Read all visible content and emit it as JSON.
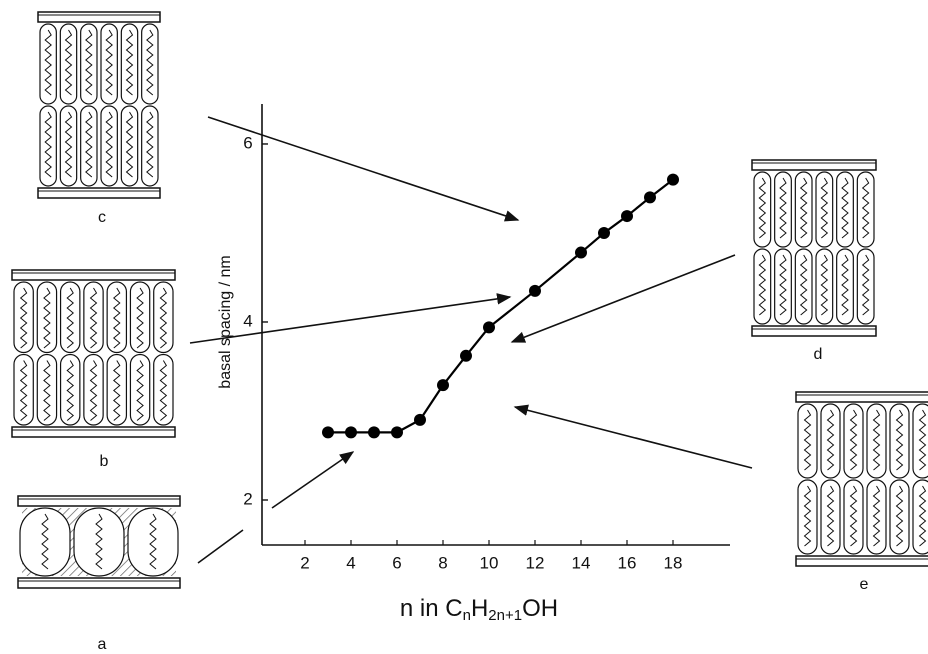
{
  "chart_data": {
    "type": "line",
    "ylabel": "basal spacing / nm",
    "xlabel_parts": [
      {
        "text": "n in C"
      },
      {
        "text": "n",
        "sub": true
      },
      {
        "text": "H"
      },
      {
        "text": "2n+1",
        "sub": true
      },
      {
        "text": "OH"
      }
    ],
    "x": [
      3,
      4,
      5,
      6,
      7,
      8,
      9,
      10,
      12,
      14,
      15,
      16,
      17,
      18
    ],
    "series": [
      {
        "color": "#000000",
        "values": [
          2.76,
          2.76,
          2.76,
          2.76,
          2.9,
          3.29,
          3.62,
          3.94,
          4.35,
          4.78,
          5.0,
          5.19,
          5.4,
          5.6
        ]
      }
    ],
    "xlim": [
      0,
      20.5
    ],
    "ylim": [
      1.5,
      6.43
    ],
    "xticks": [
      2,
      4,
      6,
      8,
      10,
      12,
      14,
      16,
      18
    ],
    "yticks": [
      2,
      4,
      6
    ]
  },
  "diagrams": [
    {
      "label": "c"
    },
    {
      "label": "b"
    },
    {
      "label": "a"
    },
    {
      "label": "d"
    },
    {
      "label": "e"
    }
  ]
}
